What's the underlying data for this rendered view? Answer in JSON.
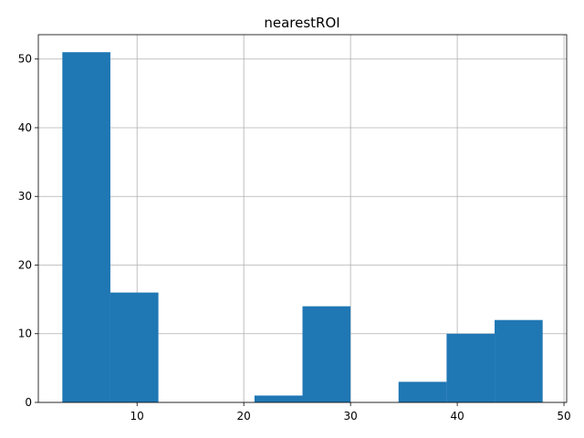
{
  "chart_data": {
    "type": "bar",
    "title": "nearestROI",
    "xlabel": "",
    "ylabel": "",
    "bins": [
      {
        "x0": 3.0,
        "x1": 7.5,
        "count": 51
      },
      {
        "x0": 7.5,
        "x1": 12.0,
        "count": 16
      },
      {
        "x0": 12.0,
        "x1": 16.5,
        "count": 0
      },
      {
        "x0": 16.5,
        "x1": 21.0,
        "count": 0
      },
      {
        "x0": 21.0,
        "x1": 25.5,
        "count": 1
      },
      {
        "x0": 25.5,
        "x1": 30.0,
        "count": 14
      },
      {
        "x0": 30.0,
        "x1": 34.5,
        "count": 0
      },
      {
        "x0": 34.5,
        "x1": 39.0,
        "count": 3
      },
      {
        "x0": 39.0,
        "x1": 43.5,
        "count": 10
      },
      {
        "x0": 43.5,
        "x1": 48.0,
        "count": 12
      }
    ],
    "xlim": [
      0.75,
      50.25
    ],
    "ylim": [
      0,
      53.55
    ],
    "xticks": [
      10,
      20,
      30,
      40,
      50
    ],
    "yticks": [
      0,
      10,
      20,
      30,
      40,
      50
    ],
    "grid": true,
    "bar_color": "#1f77b4"
  }
}
